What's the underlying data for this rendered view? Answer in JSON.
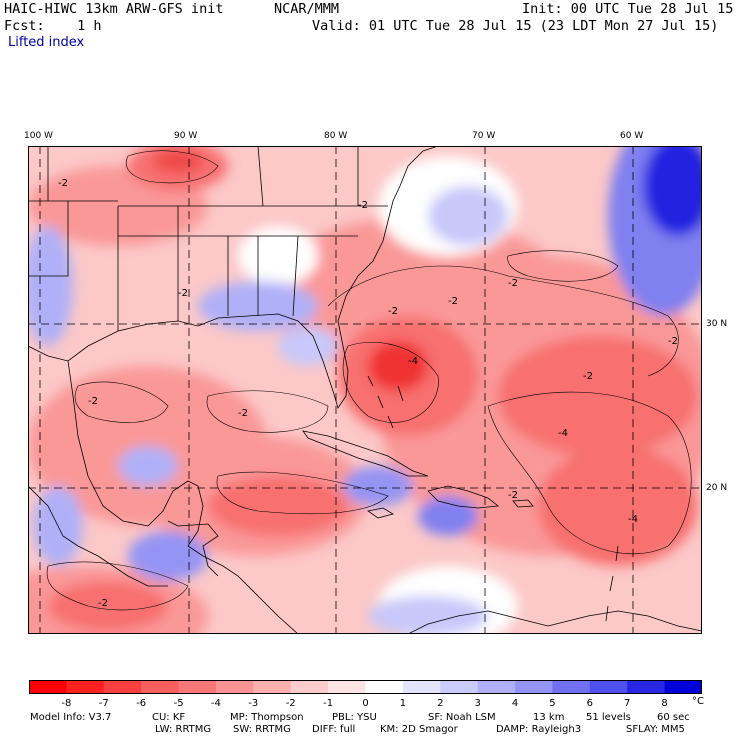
{
  "header": {
    "model": "HAIC-HIWC 13km ARW-GFS init",
    "org": "NCAR/MMM",
    "init": "Init: 00 UTC Tue 28 Jul 15",
    "fcst": "Fcst:    1 h",
    "valid": "Valid: 01 UTC Tue 28 Jul 15 (23 LDT Mon 27 Jul 15)",
    "field": "Lifted index"
  },
  "map": {
    "lon_labels": [
      "100 W",
      "90 W",
      "80 W",
      "70 W",
      "60 W"
    ],
    "lat_labels": [
      "30 N",
      "20 N"
    ],
    "contour_labels": [
      "-2",
      "-4"
    ],
    "colors": {
      "deep_red": "#f03030",
      "red": "#f87070",
      "pink": "#fa9898",
      "light_pink": "#fcc8c8",
      "white": "#ffffff",
      "light_blue": "#c8c8fa",
      "blue": "#8080f0",
      "deep_blue": "#2020e0"
    }
  },
  "colorbar": {
    "ticks": [
      "-8",
      "-7",
      "-6",
      "-5",
      "-4",
      "-3",
      "-2",
      "-1",
      "0",
      "1",
      "2",
      "3",
      "4",
      "5",
      "6",
      "7",
      "8"
    ],
    "unit": "°C",
    "colors": [
      "#ff0000",
      "#ff2020",
      "#f84040",
      "#f86060",
      "#f87878",
      "#fa9494",
      "#fbb0b0",
      "#fccccc",
      "#fde4e4",
      "#ffffff",
      "#e4e4fc",
      "#ccccfa",
      "#b0b0f8",
      "#9494f4",
      "#7070f0",
      "#5050ec",
      "#2828e4",
      "#0000d8"
    ]
  },
  "footer": {
    "model_info": "Model Info: V3.7",
    "cu": "CU: KF",
    "mp": "MP: Thompson",
    "pbl": "PBL: YSU",
    "sf": "SF: Noah LSM",
    "res": "13 km",
    "levels": "51 levels",
    "dt": "60 sec",
    "lw": "LW: RRTMG",
    "sw": "SW: RRTMG",
    "diff": "DIFF: full",
    "km": "KM: 2D Smagor",
    "damp": "DAMP: Rayleigh3",
    "sflay": "SFLAY: MM5"
  }
}
